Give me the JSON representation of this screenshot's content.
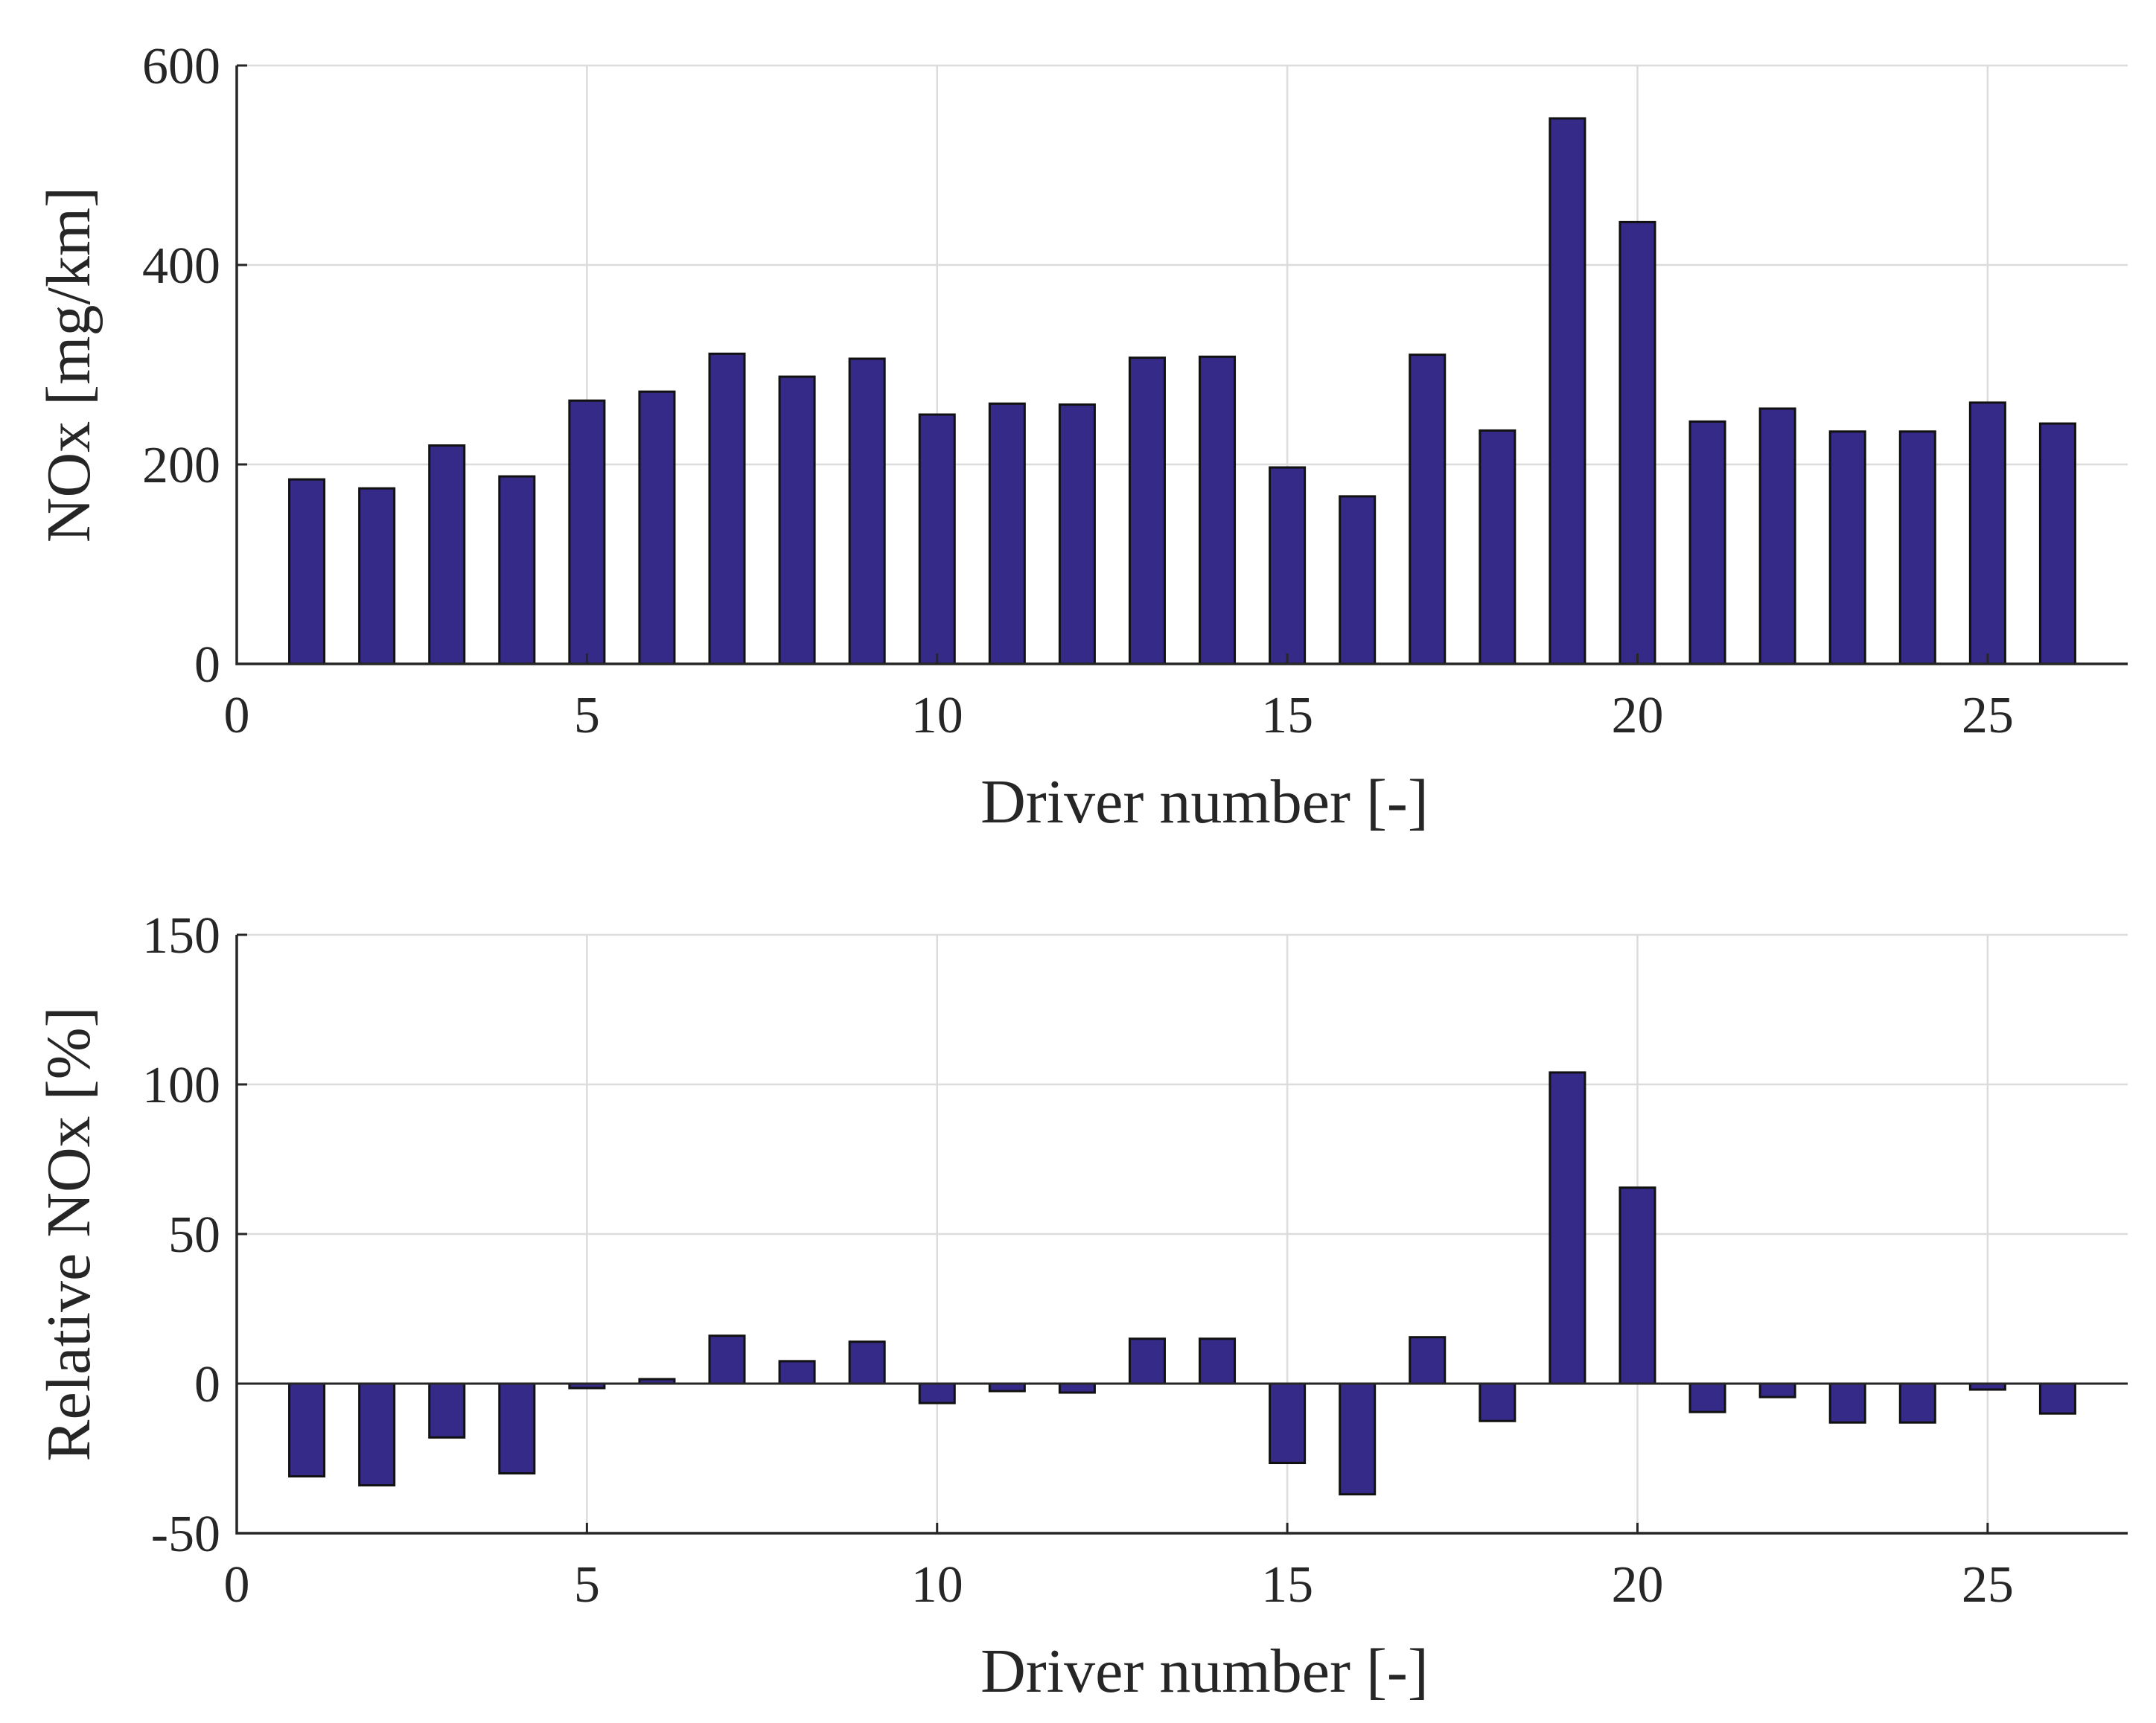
{
  "chart_data": [
    {
      "type": "bar",
      "id": "top",
      "x": [
        1,
        2,
        3,
        4,
        5,
        6,
        7,
        8,
        9,
        10,
        11,
        12,
        13,
        14,
        15,
        16,
        17,
        18,
        19,
        20,
        21,
        22,
        23,
        24,
        25,
        26
      ],
      "values": [
        185,
        176,
        219,
        188,
        264,
        273,
        311,
        288,
        306,
        250,
        261,
        260,
        307,
        308,
        197,
        168,
        310,
        234,
        547,
        443,
        243,
        256,
        233,
        233,
        262,
        241
      ],
      "xlabel": "Driver number [-]",
      "ylabel": "NOx [mg/km]",
      "xlim": [
        0,
        27
      ],
      "ylim": [
        0,
        600
      ],
      "xticks": [
        0,
        5,
        10,
        15,
        20,
        25
      ],
      "yticks": [
        0,
        200,
        400,
        600
      ],
      "grid": true,
      "bar_color": "#352a87"
    },
    {
      "type": "bar",
      "id": "bottom",
      "x": [
        1,
        2,
        3,
        4,
        5,
        6,
        7,
        8,
        9,
        10,
        11,
        12,
        13,
        14,
        15,
        16,
        17,
        18,
        19,
        20,
        21,
        22,
        23,
        24,
        25,
        26
      ],
      "values": [
        -31,
        -34,
        -18,
        -30,
        -1.5,
        1.5,
        16,
        7.5,
        14,
        -6.5,
        -2.5,
        -3,
        15,
        15,
        -26.5,
        -37,
        15.5,
        -12.5,
        104,
        65.5,
        -9.5,
        -4.5,
        -13,
        -13,
        -2,
        -10
      ],
      "xlabel": "Driver number [-]",
      "ylabel": "Relative NOx [%]",
      "xlim": [
        0,
        27
      ],
      "ylim": [
        -50,
        150
      ],
      "xticks": [
        0,
        5,
        10,
        15,
        20,
        25
      ],
      "yticks": [
        -50,
        0,
        50,
        100,
        150
      ],
      "grid": true,
      "bar_color": "#352a87"
    }
  ]
}
